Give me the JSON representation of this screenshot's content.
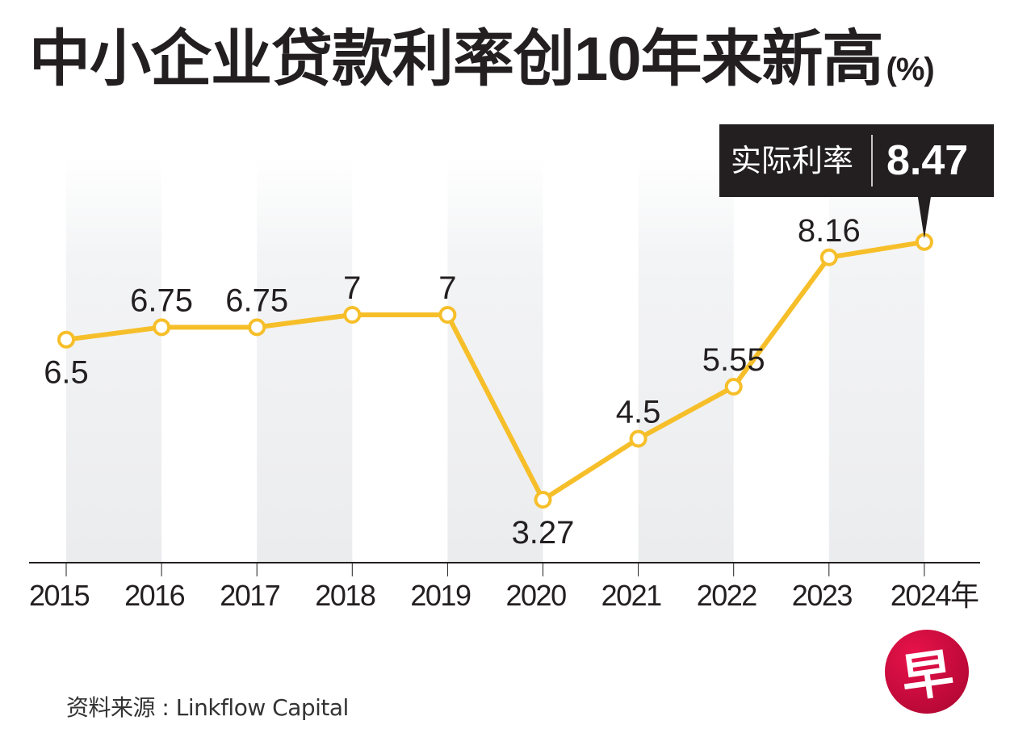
{
  "title": {
    "text": "中小企业贷款利率创10年来新高",
    "unit": "(%)"
  },
  "callout": {
    "label": "实际利率",
    "value": "8.47"
  },
  "source": "资料来源 : Linkflow Capital",
  "logo": {
    "glyph": "早"
  },
  "colors": {
    "line": "#f6bf2a",
    "marker_fill": "#ffffff",
    "band": "#ebecee",
    "callout_bg": "#231f20",
    "text": "#231f20",
    "logo": "#c20a3a"
  },
  "chart_data": {
    "type": "line",
    "title": "中小企业贷款利率创10年来新高 (%)",
    "xlabel": "",
    "ylabel": "%",
    "x": [
      "2015",
      "2016",
      "2017",
      "2018",
      "2019",
      "2020",
      "2021",
      "2022",
      "2023",
      "2024年"
    ],
    "series": [
      {
        "name": "实际利率",
        "values": [
          6.5,
          6.75,
          6.75,
          7,
          7,
          3.27,
          4.5,
          5.55,
          8.16,
          8.47
        ]
      }
    ],
    "data_labels": [
      "6.5",
      "6.75",
      "6.75",
      "7",
      "7",
      "3.27",
      "4.5",
      "5.55",
      "8.16",
      ""
    ],
    "ylim": [
      2,
      12
    ],
    "grid": false,
    "y_axis_visible": false,
    "alternating_bands": true,
    "annotation": {
      "x": "2024年",
      "label": "实际利率",
      "value": "8.47"
    }
  }
}
